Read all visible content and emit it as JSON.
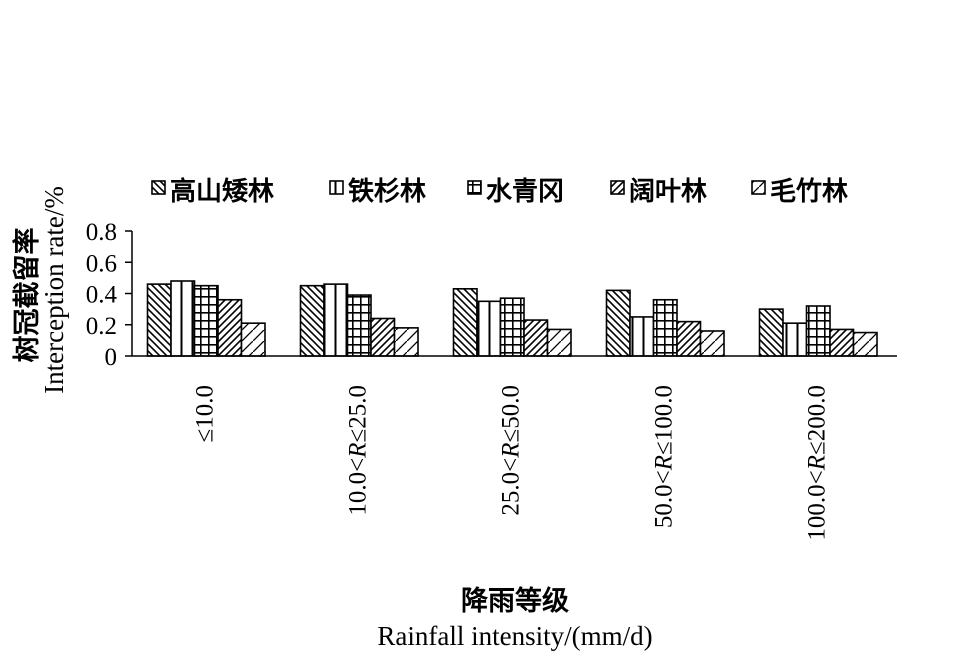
{
  "chart_data": {
    "type": "bar",
    "categories": [
      "≤10.0",
      "10.0<R≤25.0",
      "25.0<R≤50.0",
      "50.0<R≤100.0",
      "100.0<R≤200.0"
    ],
    "series": [
      {
        "name": "高山矮林",
        "values": [
          0.46,
          0.45,
          0.43,
          0.42,
          0.3
        ]
      },
      {
        "name": "铁杉林",
        "values": [
          0.48,
          0.46,
          0.35,
          0.25,
          0.21
        ]
      },
      {
        "name": "水青冈",
        "values": [
          0.45,
          0.39,
          0.37,
          0.36,
          0.32
        ]
      },
      {
        "name": "阔叶林",
        "values": [
          0.36,
          0.24,
          0.23,
          0.22,
          0.17
        ]
      },
      {
        "name": "毛竹林",
        "values": [
          0.21,
          0.18,
          0.17,
          0.16,
          0.15
        ]
      }
    ],
    "ylim": [
      0,
      0.8
    ],
    "yticks": [
      "0",
      "0.2",
      "0.4",
      "0.6",
      "0.8"
    ],
    "ylabel_cn": "树冠截留率",
    "ylabel_en": "Interception rate/%",
    "xlabel_cn": "降雨等级",
    "xlabel_en": "Rainfall intensity/(mm/d)",
    "legend_position": "top",
    "grid": false
  }
}
